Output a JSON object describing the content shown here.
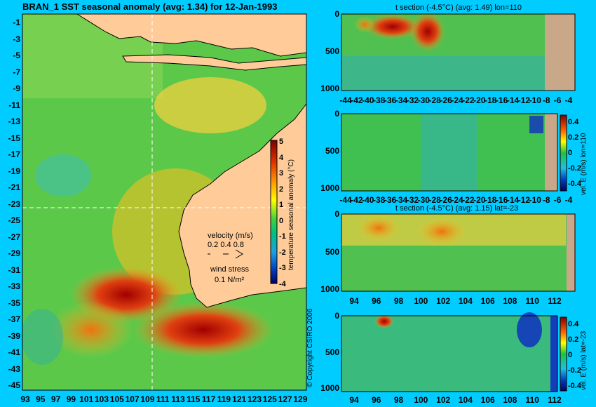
{
  "main_title": "BRAN_1 SST seasonal anomaly (avg: 1.34) for 12-Jan-1993",
  "copyright": "© Copyright CSIRO 2006",
  "map": {
    "lat_ticks": [
      "-1",
      "-3",
      "-5",
      "-7",
      "-9",
      "-11",
      "-13",
      "-15",
      "-17",
      "-19",
      "-21",
      "-23",
      "-25",
      "-27",
      "-29",
      "-31",
      "-33",
      "-35",
      "-37",
      "-39",
      "-41",
      "-43",
      "-45"
    ],
    "lon_ticks": [
      "93",
      "95",
      "97",
      "99",
      "101",
      "103",
      "105",
      "107",
      "109",
      "111",
      "113",
      "115",
      "117",
      "119",
      "121",
      "123",
      "125",
      "127",
      "129"
    ],
    "colorbar_label": "temperature seasonal anomaly (°C)",
    "colorbar_ticks": [
      "5",
      "4",
      "3",
      "2",
      "1",
      "0",
      "-1",
      "-2",
      "-3",
      "-4"
    ],
    "velocity_label": "velocity (m/s)",
    "velocity_scale": "0.2 0.4 0.8",
    "wind_label": "wind stress",
    "wind_scale": "0.1 N/m²"
  },
  "panels": {
    "p1": {
      "title": "t section (-4.5°C) (avg: 1.49) lon=110",
      "x_ticks": [
        "-44",
        "-42",
        "-40",
        "-38",
        "-36",
        "-34",
        "-32",
        "-30",
        "-28",
        "-26",
        "-24",
        "-22",
        "-20",
        "-18",
        "-16",
        "-14",
        "-12",
        "-10",
        "-8",
        "-6",
        "-4"
      ],
      "y_ticks": [
        "0",
        "500",
        "1000"
      ]
    },
    "p2": {
      "title": "",
      "x_ticks": [
        "-44",
        "-42",
        "-40",
        "-38",
        "-36",
        "-34",
        "-32",
        "-30",
        "-28",
        "-26",
        "-24",
        "-22",
        "-20",
        "-18",
        "-16",
        "-14",
        "-12",
        "-10",
        "-8",
        "-6",
        "-4"
      ],
      "y_ticks": [
        "0",
        "500",
        "1000"
      ],
      "cbar_label": "vel. E (m/s) lon=110",
      "cbar_ticks": [
        "0.4",
        "0.2",
        "0",
        "-0.2",
        "-0.4"
      ]
    },
    "p3": {
      "title": "t section (-4.5°C) (avg: 1.15) lat=-23",
      "x_ticks": [
        "94",
        "96",
        "98",
        "100",
        "102",
        "104",
        "106",
        "108",
        "110",
        "112"
      ],
      "y_ticks": [
        "0",
        "500",
        "1000"
      ]
    },
    "p4": {
      "title": "",
      "x_ticks": [
        "94",
        "96",
        "98",
        "100",
        "102",
        "104",
        "106",
        "108",
        "110",
        "112"
      ],
      "y_ticks": [
        "0",
        "500",
        "1000"
      ],
      "cbar_label": "vel. E (m/s) lat=-23",
      "cbar_ticks": [
        "0.4",
        "0.2",
        "0",
        "-0.2",
        "-0.4"
      ]
    }
  },
  "chart_data": [
    {
      "type": "heatmap",
      "title": "BRAN_1 SST seasonal anomaly (avg: 1.34) for 12-Jan-1993",
      "xlabel": "",
      "ylabel": "",
      "xlim": [
        93,
        130
      ],
      "ylim": [
        -45,
        0
      ],
      "clim": [
        -4,
        5
      ],
      "unit": "°C"
    },
    {
      "type": "heatmap",
      "title": "t section (-4.5°C) (avg: 1.49) lon=110",
      "xlim": [
        -45,
        -3
      ],
      "ylim": [
        1050,
        0
      ],
      "clim": [
        -4.5,
        4.5
      ]
    },
    {
      "type": "heatmap",
      "title": "",
      "xlim": [
        -45,
        -3
      ],
      "ylim": [
        1050,
        0
      ],
      "clim": [
        -0.4,
        0.4
      ],
      "colorbar": "vel. E (m/s) lon=110"
    },
    {
      "type": "heatmap",
      "title": "t section (-4.5°C) (avg: 1.15) lat=-23",
      "xlim": [
        93,
        114
      ],
      "ylim": [
        1050,
        0
      ],
      "clim": [
        -4.5,
        4.5
      ]
    },
    {
      "type": "heatmap",
      "title": "",
      "xlim": [
        93,
        114
      ],
      "ylim": [
        1050,
        0
      ],
      "clim": [
        -0.4,
        0.4
      ],
      "colorbar": "vel. E (m/s) lat=-23"
    }
  ]
}
